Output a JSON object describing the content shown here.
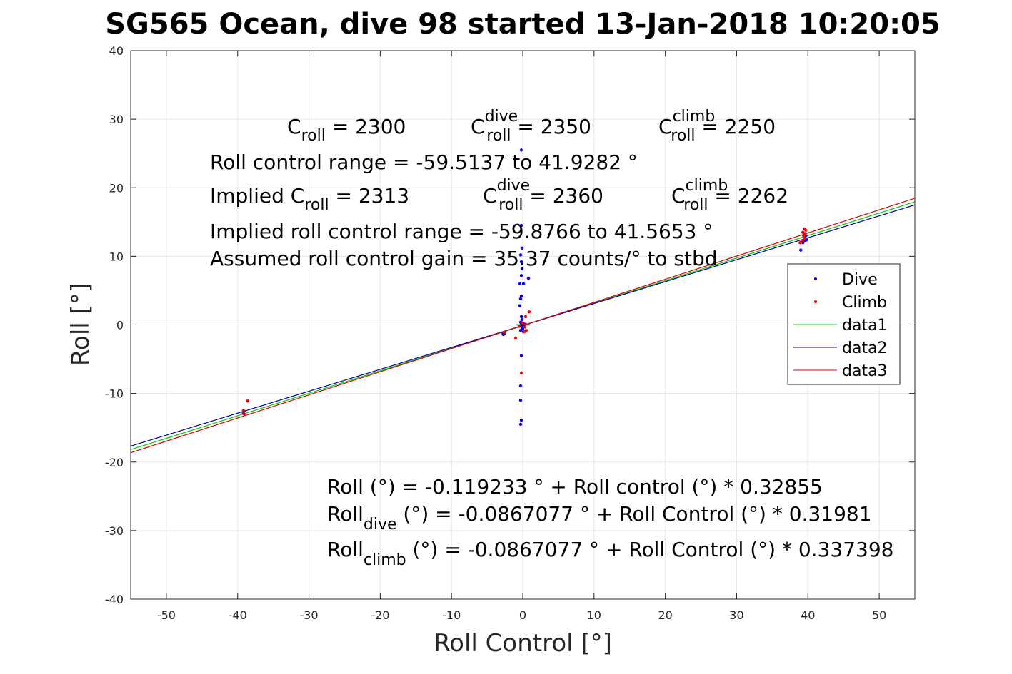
{
  "chart_data": {
    "type": "scatter",
    "title": "SG565 Ocean, dive 98 started 13-Jan-2018 10:20:05",
    "xlabel": "Roll Control [°]",
    "ylabel": "Roll [°]",
    "xlim": [
      -55,
      55
    ],
    "ylim": [
      -40,
      40
    ],
    "xticks": [
      -50,
      -40,
      -30,
      -20,
      -10,
      0,
      10,
      20,
      30,
      40,
      50
    ],
    "yticks": [
      -40,
      -30,
      -20,
      -10,
      0,
      10,
      20,
      30,
      40
    ],
    "grid": true,
    "legend_position": "right",
    "annotations": [
      "C_roll = 2300",
      "C_roll^dive = 2350",
      "C_roll^climb = 2250",
      "Roll control range = -59.5137 to 41.9282 °",
      "Implied C_roll = 2313",
      "C_roll^dive = 2360",
      "C_roll^climb = 2262",
      "Implied roll control range = -59.8766 to 41.5653 °",
      "Assumed roll control gain = 35.37 counts/° to stbd",
      "Roll (°) = -0.119233 ° + Roll control (°) * 0.32855",
      "Roll_dive (°) = -0.0867077 ° + Roll Control (°) * 0.31981",
      "Roll_climb (°) = -0.0867077 ° + Roll Control (°) * 0.337398"
    ],
    "series": [
      {
        "name": "Dive",
        "kind": "points",
        "color": "#0000ff",
        "points": [
          [
            -0.2,
            25.5
          ],
          [
            -0.2,
            14.5
          ],
          [
            -0.1,
            11.2
          ],
          [
            -0.3,
            10.2
          ],
          [
            -0.2,
            9.2
          ],
          [
            -0.1,
            8.2
          ],
          [
            -0.2,
            7.2
          ],
          [
            -0.4,
            6.0
          ],
          [
            0.1,
            6.0
          ],
          [
            0.8,
            6.8
          ],
          [
            -0.2,
            4.2
          ],
          [
            -0.3,
            3.8
          ],
          [
            -0.4,
            2.8
          ],
          [
            -0.2,
            1.2
          ],
          [
            -0.1,
            0.8
          ],
          [
            -0.3,
            0.4
          ],
          [
            0.1,
            0.2
          ],
          [
            -0.2,
            0.0
          ],
          [
            0.2,
            -0.2
          ],
          [
            -0.1,
            -0.4
          ],
          [
            0.0,
            -0.6
          ],
          [
            -0.3,
            -0.8
          ],
          [
            0.1,
            -1.0
          ],
          [
            -0.2,
            -4.5
          ],
          [
            -0.3,
            -8.9
          ],
          [
            -0.3,
            -11.0
          ],
          [
            -0.2,
            -13.9
          ],
          [
            -0.3,
            -14.5
          ],
          [
            -2.8,
            -1.2
          ],
          [
            -2.6,
            -1.3
          ],
          [
            -2.7,
            -1.4
          ],
          [
            -39.2,
            -12.9
          ],
          [
            -39.1,
            -12.6
          ],
          [
            39.0,
            10.9
          ],
          [
            39.3,
            12.0
          ],
          [
            39.6,
            12.3
          ],
          [
            39.8,
            12.4
          ],
          [
            39.5,
            12.7
          ],
          [
            39.7,
            13.0
          ]
        ]
      },
      {
        "name": "Climb",
        "kind": "points",
        "color": "#ff0000",
        "points": [
          [
            -0.2,
            -7.0
          ],
          [
            0.9,
            1.9
          ],
          [
            0.4,
            1.2
          ],
          [
            -1.0,
            -1.9
          ],
          [
            -0.5,
            -0.2
          ],
          [
            0.3,
            -0.3
          ],
          [
            0.5,
            -0.8
          ],
          [
            0.2,
            -1.0
          ],
          [
            -0.1,
            0.3
          ],
          [
            0.4,
            0.1
          ],
          [
            -2.6,
            -1.1
          ],
          [
            -38.6,
            -11.1
          ],
          [
            -39.2,
            -12.5
          ],
          [
            -39.1,
            -13.0
          ],
          [
            38.9,
            12.0
          ],
          [
            39.2,
            12.2
          ],
          [
            39.5,
            12.6
          ],
          [
            39.4,
            13.0
          ],
          [
            39.6,
            13.3
          ],
          [
            39.3,
            13.5
          ],
          [
            39.7,
            13.8
          ],
          [
            39.5,
            14.0
          ]
        ]
      },
      {
        "name": "data1",
        "kind": "line",
        "color": "#00cc00",
        "intercept": -0.119233,
        "slope": 0.32855
      },
      {
        "name": "data2",
        "kind": "line",
        "color": "#0000aa",
        "intercept": -0.0867077,
        "slope": 0.31981
      },
      {
        "name": "data3",
        "kind": "line",
        "color": "#dd0000",
        "intercept": -0.0867077,
        "slope": 0.337398
      }
    ]
  }
}
